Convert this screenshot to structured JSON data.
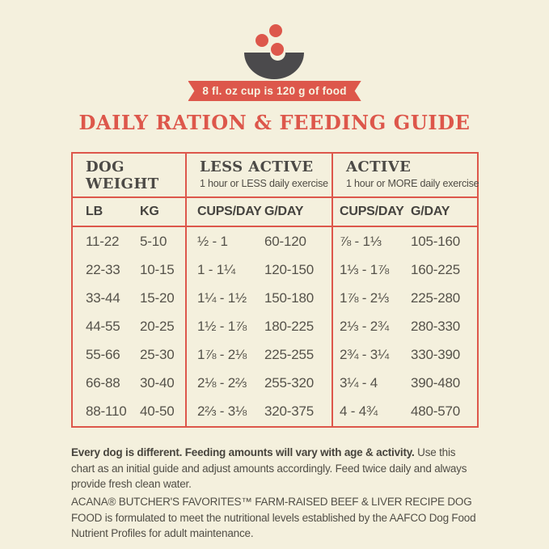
{
  "badge": {
    "label": "8 fl. oz cup is 120 g of food"
  },
  "title": "DAILY RATION & FEEDING GUIDE",
  "table": {
    "groups": [
      {
        "title": "DOG WEIGHT",
        "subtitle": ""
      },
      {
        "title": "LESS ACTIVE",
        "subtitle": "1 hour or LESS daily exercise"
      },
      {
        "title": "ACTIVE",
        "subtitle": "1 hour or MORE daily exercise"
      }
    ],
    "columns": [
      "LB",
      "KG",
      "CUPS/DAY",
      "G/DAY",
      "CUPS/DAY",
      "G/DAY"
    ],
    "rows": [
      [
        "11-22",
        "5-10",
        "½ - 1",
        "60-120",
        "⅞ - 1⅓",
        "105-160"
      ],
      [
        "22-33",
        "10-15",
        "1 - 1¼",
        "120-150",
        "1⅓ - 1⅞",
        "160-225"
      ],
      [
        "33-44",
        "15-20",
        "1¼ - 1½",
        "150-180",
        "1⅞ - 2⅓",
        "225-280"
      ],
      [
        "44-55",
        "20-25",
        "1½ - 1⅞",
        "180-225",
        "2⅓ - 2¾",
        "280-330"
      ],
      [
        "55-66",
        "25-30",
        "1⅞ - 2⅛",
        "225-255",
        "2¾ - 3¼",
        "330-390"
      ],
      [
        "66-88",
        "30-40",
        "2⅛ - 2⅔",
        "255-320",
        "3¼ - 4",
        "390-480"
      ],
      [
        "88-110",
        "40-50",
        "2⅔ - 3⅛",
        "320-375",
        "4 - 4¾",
        "480-570"
      ]
    ]
  },
  "notes": {
    "note1_bold": "Every dog is different. Feeding amounts will vary with age & activity.",
    "note1_rest": " Use this chart as an initial guide and adjust amounts accordingly. Feed twice daily and always provide fresh clean water.",
    "note2_caps": "ACANA® BUTCHER'S FAVORITES™ FARM-RAISED BEEF & LIVER RECIPE DOG FOOD",
    "note2_rest": " is formulated to meet the nutritional levels established by the AAFCO Dog Food Nutrient Profiles for adult maintenance."
  },
  "colors": {
    "background": "#f4f0dd",
    "accent_red": "#dd574b",
    "charcoal": "#4b4a4c",
    "text": "#55524a"
  }
}
